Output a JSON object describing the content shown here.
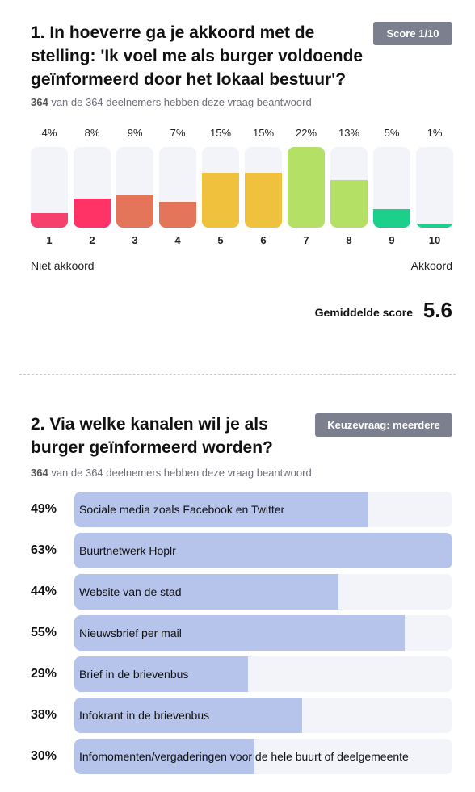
{
  "chart_data": [
    {
      "type": "bar",
      "title": "1. In hoeverre ga je akkoord met de stelling: 'Ik voel me als burger voldoende geïnformeerd door het lokaal bestuur'?",
      "badge": "Score 1/10",
      "answered": 364,
      "subtitle": "van de 364 deelnemers hebben deze vraag beantwoord",
      "categories": [
        "1",
        "2",
        "3",
        "4",
        "5",
        "6",
        "7",
        "8",
        "9",
        "10"
      ],
      "values": [
        4,
        8,
        9,
        7,
        15,
        15,
        22,
        13,
        5,
        1
      ],
      "value_labels": [
        "4%",
        "8%",
        "9%",
        "7%",
        "15%",
        "15%",
        "22%",
        "13%",
        "5%",
        "1%"
      ],
      "colors": [
        "#f7416d",
        "#ff3366",
        "#e5755a",
        "#e5755a",
        "#f0c13c",
        "#f0c13c",
        "#b4e066",
        "#b4e066",
        "#1ccf8a",
        "#1ccf8a"
      ],
      "ylim": [
        0,
        22
      ],
      "low_label": "Niet akkoord",
      "high_label": "Akkoord",
      "average_label": "Gemiddelde score",
      "average": 5.6
    },
    {
      "type": "hbar",
      "title": "2. Via welke kanalen wil je als burger geïnformeerd worden?",
      "badge": "Keuzevraag: meerdere",
      "answered": 364,
      "subtitle": "van de 364 deelnemers hebben deze vraag beantwoord",
      "categories": [
        "Sociale media zoals Facebook en Twitter",
        "Buurtnetwerk Hoplr",
        "Website van de stad",
        "Nieuwsbrief per mail",
        "Brief in de brievenbus",
        "Infokrant in de brievenbus",
        "Infomomenten/vergaderingen voor de hele buurt of deelgemeente"
      ],
      "values": [
        49,
        63,
        44,
        55,
        29,
        38,
        30
      ],
      "value_labels": [
        "49%",
        "63%",
        "44%",
        "55%",
        "29%",
        "38%",
        "30%"
      ],
      "color": "#b6c3ea",
      "ylim": [
        0,
        63
      ]
    }
  ]
}
